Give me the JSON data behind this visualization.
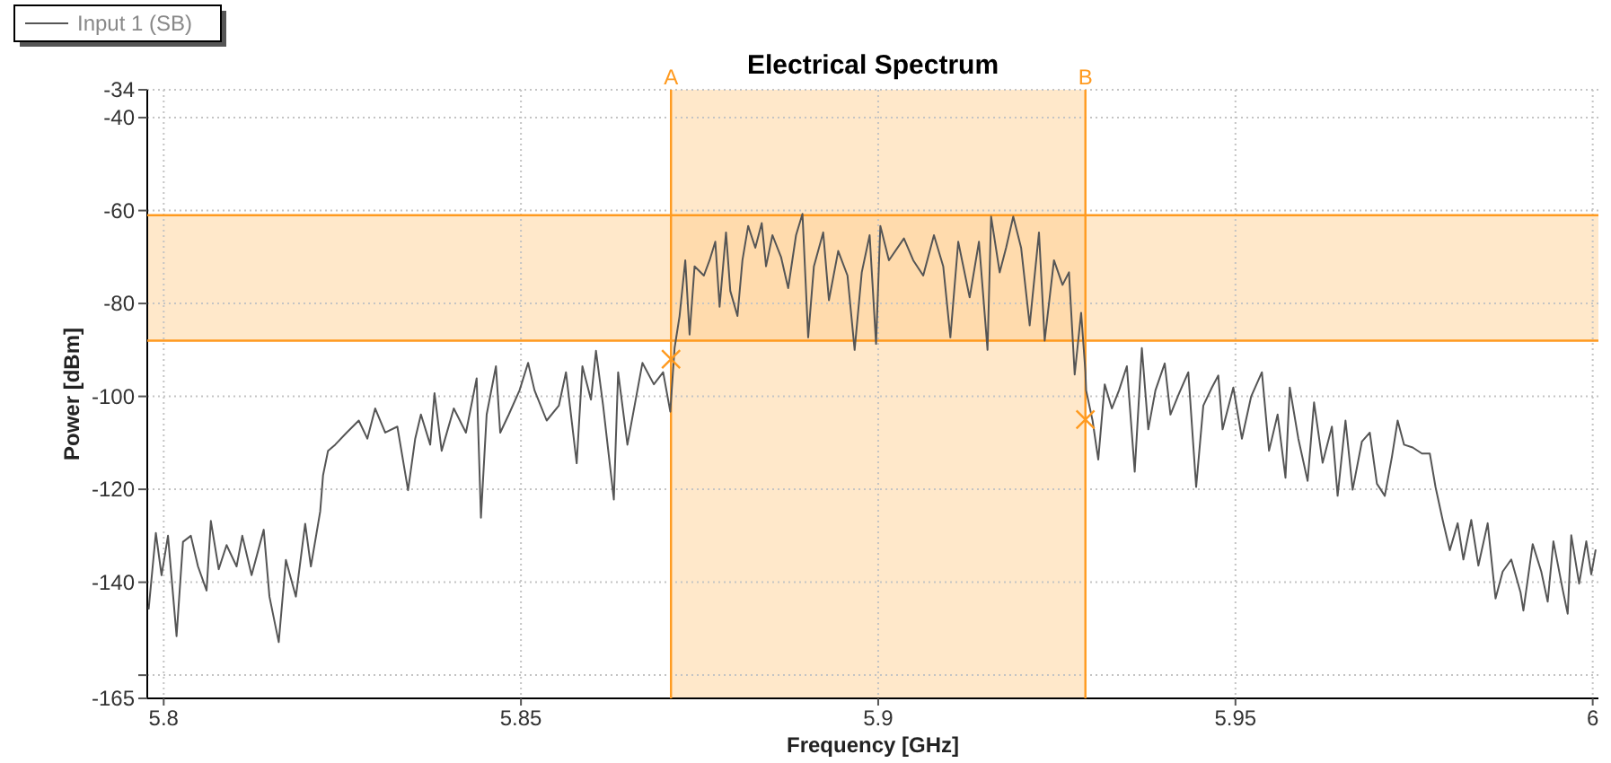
{
  "chart_data": {
    "type": "line",
    "title": "Electrical Spectrum",
    "xlabel": "Frequency [GHz]",
    "ylabel": "Power [dBm]",
    "xlim": [
      5.7977,
      6.0008
    ],
    "xticks": [
      5.8,
      5.85,
      5.9,
      5.95,
      6
    ],
    "ylim": [
      -165,
      -34
    ],
    "yticks": [
      -34,
      -40,
      -60,
      -80,
      -100,
      -120,
      -140,
      {
        "value": -160,
        "label": null
      },
      -165
    ],
    "grid": true,
    "legend": "top left",
    "bands": [
      {
        "axis": "x",
        "from": 5.871,
        "to": 5.929,
        "color": "#ffcc8a"
      },
      {
        "axis": "y",
        "from": -88,
        "to": -61,
        "color": "#ffcc8a"
      }
    ],
    "ref_lines": [
      {
        "axis": "x",
        "value": 5.871,
        "label": "A",
        "color": "#ff9a1f"
      },
      {
        "axis": "x",
        "value": 5.929,
        "label": "B",
        "color": "#ff9a1f"
      },
      {
        "axis": "y",
        "value": -61,
        "color": "#ff9a1f"
      },
      {
        "axis": "y",
        "value": -88,
        "color": "#ff9a1f"
      }
    ],
    "series": [
      {
        "name": "Input 1  (SB)",
        "color": "#555555",
        "line_style": "solid",
        "marker": "none",
        "x": [
          5.7979,
          5.7989,
          5.7997,
          5.8006,
          5.8018,
          5.8027,
          5.8038,
          5.8048,
          5.806,
          5.8066,
          5.8077,
          5.8088,
          5.8102,
          5.811,
          5.8123,
          5.814,
          5.8148,
          5.8161,
          5.8171,
          5.8185,
          5.8198,
          5.8206,
          5.8219,
          5.8223,
          5.823,
          5.824,
          5.8256,
          5.8273,
          5.8285,
          5.8296,
          5.831,
          5.8327,
          5.8342,
          5.8352,
          5.836,
          5.8373,
          5.8379,
          5.8389,
          5.8406,
          5.8423,
          5.8438,
          5.8444,
          5.8452,
          5.8465,
          5.8471,
          5.8483,
          5.8498,
          5.851,
          5.8519,
          5.8536,
          5.8553,
          5.8563,
          5.8578,
          5.8586,
          5.8598,
          5.8605,
          5.8615,
          5.863,
          5.8636,
          5.8649,
          5.867,
          5.8686,
          5.8699,
          5.8709,
          5.8715,
          5.8722,
          5.873,
          5.8736,
          5.8743,
          5.8756,
          5.8764,
          5.8772,
          5.8778,
          5.8787,
          5.8793,
          5.8803,
          5.881,
          5.8818,
          5.8828,
          5.8837,
          5.8843,
          5.8852,
          5.8864,
          5.8874,
          5.8885,
          5.8894,
          5.8902,
          5.891,
          5.8923,
          5.8931,
          5.8944,
          5.8957,
          5.8967,
          5.8977,
          5.8988,
          5.8997,
          5.9003,
          5.9015,
          5.9036,
          5.9049,
          5.9063,
          5.9078,
          5.9091,
          5.9101,
          5.9112,
          5.9128,
          5.9141,
          5.9153,
          5.9158,
          5.917,
          5.9179,
          5.9189,
          5.92,
          5.9212,
          5.9225,
          5.9233,
          5.9246,
          5.9258,
          5.9267,
          5.9275,
          5.9284,
          5.929,
          5.9291,
          5.93,
          5.9308,
          5.9317,
          5.9327,
          5.9337,
          5.9348,
          5.9359,
          5.9369,
          5.9378,
          5.9388,
          5.9401,
          5.9409,
          5.9421,
          5.9434,
          5.9445,
          5.9455,
          5.9467,
          5.9476,
          5.9482,
          5.9497,
          5.9509,
          5.9522,
          5.9537,
          5.9547,
          5.9559,
          5.957,
          5.9576,
          5.9588,
          5.9601,
          5.961,
          5.9622,
          5.9635,
          5.9643,
          5.9654,
          5.9664,
          5.9677,
          5.9688,
          5.9698,
          5.9709,
          5.9719,
          5.9727,
          5.9736,
          5.9748,
          5.9761,
          5.9772,
          5.978,
          5.979,
          5.98,
          5.9811,
          5.9819,
          5.983,
          5.984,
          5.9853,
          5.9864,
          5.9874,
          5.9886,
          5.9899,
          5.9903,
          5.9916,
          5.9928,
          5.9937,
          5.9945,
          5.9958,
          5.9965,
          5.997,
          5.9981,
          5.9991,
          5.9998,
          6.0004
        ],
        "values": [
          -145.7,
          -129.4,
          -138.5,
          -130,
          -151.6,
          -131.3,
          -130,
          -136.6,
          -141.8,
          -126.8,
          -137.2,
          -132,
          -136.6,
          -130,
          -138.5,
          -128.7,
          -143.1,
          -152.9,
          -135.2,
          -143.1,
          -127.4,
          -136.6,
          -124.8,
          -117,
          -111.7,
          -110.4,
          -107.8,
          -105.2,
          -109.1,
          -102.6,
          -107.8,
          -106.5,
          -120.2,
          -109.1,
          -103.9,
          -110.4,
          -99.3,
          -111.7,
          -102.6,
          -107.8,
          -96.1,
          -126.1,
          -103.9,
          -93.5,
          -107.8,
          -103.9,
          -98.7,
          -92.8,
          -98.7,
          -105.2,
          -102,
          -94.8,
          -114.4,
          -93.5,
          -100.7,
          -90.2,
          -102,
          -122.2,
          -94.8,
          -110.4,
          -92.8,
          -97.4,
          -94.8,
          -103.3,
          -89.6,
          -82.7,
          -70.7,
          -86.7,
          -72,
          -74,
          -70.7,
          -66.7,
          -80.7,
          -64.7,
          -77.3,
          -82.7,
          -70.7,
          -63.3,
          -68,
          -62.7,
          -72,
          -65.3,
          -70,
          -76.7,
          -65.3,
          -60.7,
          -87.3,
          -72,
          -64.7,
          -79.3,
          -68.7,
          -74,
          -90,
          -73.3,
          -65.3,
          -88.7,
          -63.3,
          -70.7,
          -66,
          -70.7,
          -74,
          -65.3,
          -72,
          -87.3,
          -66.7,
          -78.7,
          -66.7,
          -90,
          -61.3,
          -73.3,
          -68,
          -61.3,
          -68,
          -84.7,
          -64.7,
          -88,
          -70.7,
          -76,
          -73.3,
          -95.3,
          -82,
          -94.7,
          -98.7,
          -105.2,
          -113.6,
          -97.4,
          -102.6,
          -98.7,
          -93.5,
          -116.2,
          -89.6,
          -107.1,
          -98.7,
          -92.9,
          -103.9,
          -99.4,
          -94.8,
          -119.5,
          -102,
          -98.1,
          -95.5,
          -107.1,
          -98.1,
          -109.1,
          -100,
          -94.8,
          -111.7,
          -103.9,
          -117.5,
          -98.1,
          -109.1,
          -118.2,
          -101.3,
          -114.3,
          -106.5,
          -121.4,
          -105.2,
          -120.1,
          -109.7,
          -107.8,
          -118.8,
          -121.4,
          -113,
          -105.2,
          -110.4,
          -111,
          -112.3,
          -112.3,
          -119.5,
          -126.6,
          -133.1,
          -127.3,
          -135.1,
          -126.6,
          -136.4,
          -127.3,
          -143.5,
          -137.7,
          -135.1,
          -142.2,
          -146.1,
          -131.8,
          -137.7,
          -144.2,
          -131.2,
          -141.6,
          -146.8,
          -129.9,
          -140.3,
          -131.2,
          -138.3,
          -133.1
        ]
      },
      {
        "type": "scatter",
        "color": "#ff9a1f",
        "marker": "cross",
        "x": [
          5.871,
          5.929
        ],
        "values": [
          -92,
          -105
        ]
      }
    ]
  }
}
